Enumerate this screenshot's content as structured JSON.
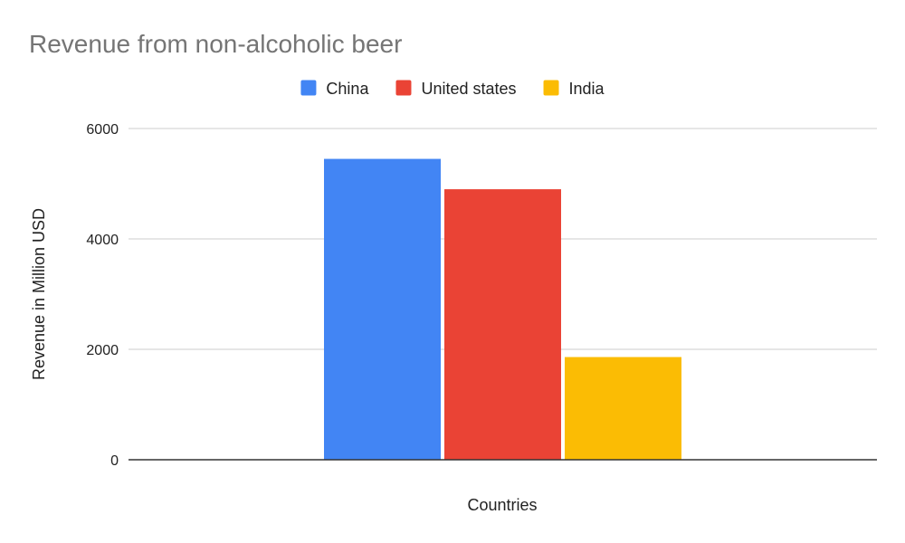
{
  "chart_data": {
    "type": "bar",
    "title": "Revenue from non-alcoholic beer",
    "xlabel": "Countries",
    "ylabel": "Revenue in Million USD",
    "categories": [
      ""
    ],
    "series": [
      {
        "name": "China",
        "color": "#4285f4",
        "values": [
          5450
        ]
      },
      {
        "name": "United states",
        "color": "#ea4335",
        "values": [
          4900
        ]
      },
      {
        "name": "India",
        "color": "#fbbc04",
        "values": [
          1860
        ]
      }
    ],
    "ylim": [
      0,
      6000
    ],
    "yticks": [
      "0",
      "2000",
      "4000",
      "6000"
    ],
    "ytick_values": [
      0,
      2000,
      4000,
      6000
    ],
    "grid": true,
    "legend_position": "top-center"
  }
}
